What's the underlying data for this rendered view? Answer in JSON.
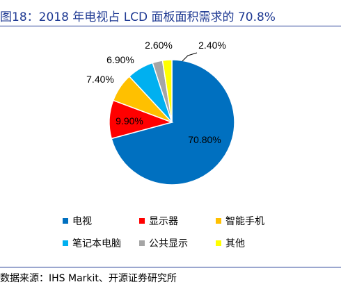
{
  "title": "图18：2018 年电视占 LCD 面板面积需求的 70.8%",
  "source": "数据来源：IHS Markit、开源证券研究所",
  "chart_data": {
    "type": "pie",
    "title": "",
    "categories": [
      "电视",
      "显示器",
      "智能手机",
      "笔记本电脑",
      "公共显示",
      "其他"
    ],
    "values": [
      70.8,
      9.9,
      7.4,
      6.9,
      2.6,
      2.4
    ],
    "data_labels": [
      "70.80%",
      "9.90%",
      "7.40%",
      "6.90%",
      "2.60%",
      "2.40%"
    ],
    "colors": [
      "#0070C0",
      "#FF0000",
      "#FFC000",
      "#00B0F0",
      "#A5A5A5",
      "#FFFF00"
    ],
    "legend": [
      "电视",
      "显示器",
      "智能手机",
      "笔记本电脑",
      "公共显示",
      "其他"
    ],
    "legend_position": "bottom"
  }
}
